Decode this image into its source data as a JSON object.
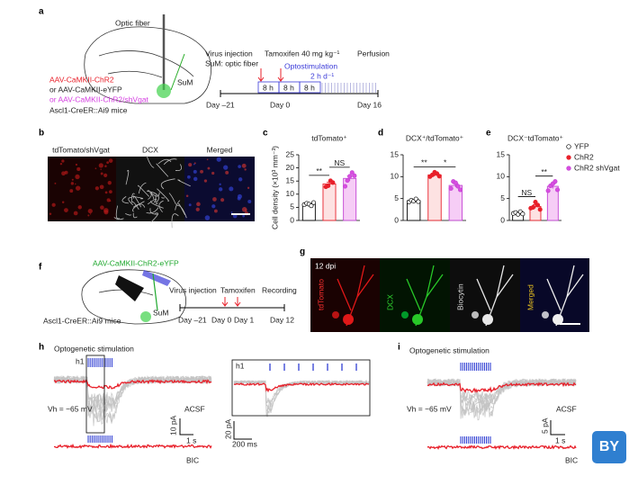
{
  "figure": {
    "a": {
      "label": "a",
      "optic_fiber": "Optic fiber",
      "sum": "SuM",
      "virus_1": "AAV-CaMKII-ChR2",
      "virus_2": "or AAV-CaMKII-eYFP",
      "virus_3": "or AAV-CaMKII-ChR2/shVgat",
      "mice": "Ascl1-CreER::Ai9 mice",
      "virus_injection": "Virus injection",
      "sum_fiber": "SuM: optic fiber",
      "tamoxifen": "Tamoxifen 40 mg kg⁻¹",
      "perfusion": "Perfusion",
      "optostim": "Optostimulation",
      "optostim_rate": "2 h d⁻¹",
      "interval_1": "8 h",
      "interval_2": "8 h",
      "interval_3": "8 h",
      "day_start": "Day –21",
      "day_zero": "Day 0",
      "day_end": "Day 16"
    },
    "b": {
      "label": "b",
      "image_1": "tdTomato/shVgat",
      "image_2": "DCX",
      "image_3": "Merged"
    },
    "c": {
      "label": "c"
    },
    "d": {
      "label": "d"
    },
    "e": {
      "label": "e"
    },
    "f": {
      "label": "f",
      "virus": "AAV-CaMKII-ChR2-eYFP",
      "sum": "SuM",
      "mice": "Ascl1-CreER::Ai9 mice",
      "virus_injection": "Virus injection",
      "tamoxifen": "Tamoxifen",
      "recording": "Recording",
      "day_start": "Day –21",
      "day_zero": "Day 0",
      "day_one": "Day 1",
      "day_end": "Day 12"
    },
    "g": {
      "label": "g",
      "dpi": "12 dpi",
      "image_1": "tdTomato",
      "image_2": "DCX",
      "image_3": "Biocytin",
      "image_4": "Merged"
    },
    "h": {
      "label": "h",
      "stim": "Optogenetic stimulation",
      "inset_tag": "h1",
      "holding": "Vh = −65 mV",
      "acsf": "ACSF",
      "bic": "BIC",
      "scale_y": "10 pA",
      "scale_x": "1 s",
      "inset_label": "h1",
      "inset_scale_y": "20 pA",
      "inset_scale_x": "200 ms"
    },
    "i": {
      "label": "i",
      "stim": "Optogenetic stimulation",
      "holding": "Vh = −65 mV",
      "acsf": "ACSF",
      "bic": "BIC",
      "scale_y": "5 pA",
      "scale_x": "1 s"
    },
    "logo": "BY"
  },
  "chart_data": [
    {
      "type": "bar",
      "title": "tdTomato⁺",
      "ylabel": "Cell density (×10³ mm⁻³)",
      "ylim": [
        0,
        25
      ],
      "yticks": [
        0,
        5,
        10,
        15,
        20,
        25
      ],
      "values": [
        6.2,
        13.9,
        16.0
      ],
      "errors": [
        0.3,
        0.6,
        0.9
      ],
      "points": [
        [
          6.0,
          6.5,
          6.2,
          5.6,
          6.8
        ],
        [
          12.8,
          13.2,
          15.1,
          14.4
        ],
        [
          13.0,
          15.2,
          16.8,
          18.2,
          17.0
        ]
      ],
      "colors": [
        "#ffffff",
        "#fde2e2",
        "#f6cdf6"
      ],
      "edge_colors": [
        "#000000",
        "#e8202a",
        "#c444d4"
      ],
      "point_fills": [
        "#ffffff",
        "#e8202a",
        "#d84ee0"
      ],
      "significance": [
        "**",
        "NS"
      ]
    },
    {
      "type": "bar",
      "title": "DCX⁺/tdTomato⁺",
      "ylim": [
        0,
        15
      ],
      "yticks": [
        0,
        5,
        10,
        15
      ],
      "values": [
        4.5,
        10.4,
        8.0
      ],
      "errors": [
        0.2,
        0.3,
        0.4
      ],
      "points": [
        [
          4.2,
          4.6,
          4.4,
          4.9,
          4.3
        ],
        [
          10.0,
          10.4,
          11.0,
          10.7,
          10.1
        ],
        [
          7.3,
          8.9,
          8.6,
          7.8,
          7.0
        ]
      ],
      "colors": [
        "#ffffff",
        "#fde2e2",
        "#f6cdf6"
      ],
      "edge_colors": [
        "#000000",
        "#e8202a",
        "#c444d4"
      ],
      "point_fills": [
        "#ffffff",
        "#e8202a",
        "#d84ee0"
      ],
      "significance": [
        "**",
        "*"
      ]
    },
    {
      "type": "bar",
      "title": "DCX⁻tdTomato⁺",
      "ylim": [
        0,
        15
      ],
      "yticks": [
        0,
        5,
        10,
        15
      ],
      "values": [
        1.7,
        3.2,
        7.8
      ],
      "errors": [
        0.2,
        0.4,
        0.5
      ],
      "points": [
        [
          1.6,
          1.8,
          1.4,
          2.0,
          1.5
        ],
        [
          2.8,
          3.0,
          4.2,
          3.5,
          2.5
        ],
        [
          6.8,
          7.9,
          8.4,
          8.9,
          7.0
        ]
      ],
      "colors": [
        "#ffffff",
        "#fde2e2",
        "#f6cdf6"
      ],
      "edge_colors": [
        "#000000",
        "#e8202a",
        "#c444d4"
      ],
      "point_fills": [
        "#ffffff",
        "#e8202a",
        "#d84ee0"
      ],
      "significance": [
        "NS",
        "**"
      ],
      "legend": [
        "YFP",
        "ChR2",
        "ChR2 shVgat"
      ]
    }
  ]
}
